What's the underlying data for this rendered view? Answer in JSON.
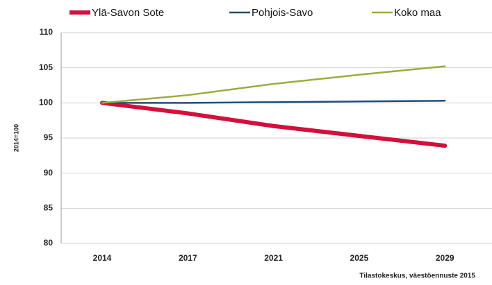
{
  "chart_data": {
    "type": "line",
    "y_label": "2014=100",
    "source": "Tilastokeskus, väestöennuste 2015",
    "categories": [
      "2014",
      "2017",
      "2021",
      "2025",
      "2029"
    ],
    "series": [
      {
        "name": "Ylä-Savon Sote",
        "color": "#d2103c",
        "line_width": 6,
        "values": [
          100,
          98.5,
          96.7,
          95.3,
          93.9
        ]
      },
      {
        "name": "Pohjois-Savo",
        "color": "#1f4e79",
        "line_width": 2.5,
        "values": [
          100,
          100,
          100.1,
          100.2,
          100.3
        ]
      },
      {
        "name": "Koko maa",
        "color": "#9bab3c",
        "line_width": 2.5,
        "values": [
          100,
          101.1,
          102.7,
          104,
          105.2
        ]
      }
    ],
    "ylim": [
      80,
      110
    ],
    "yticks": [
      80,
      85,
      90,
      95,
      100,
      105,
      110
    ],
    "grid": true
  }
}
